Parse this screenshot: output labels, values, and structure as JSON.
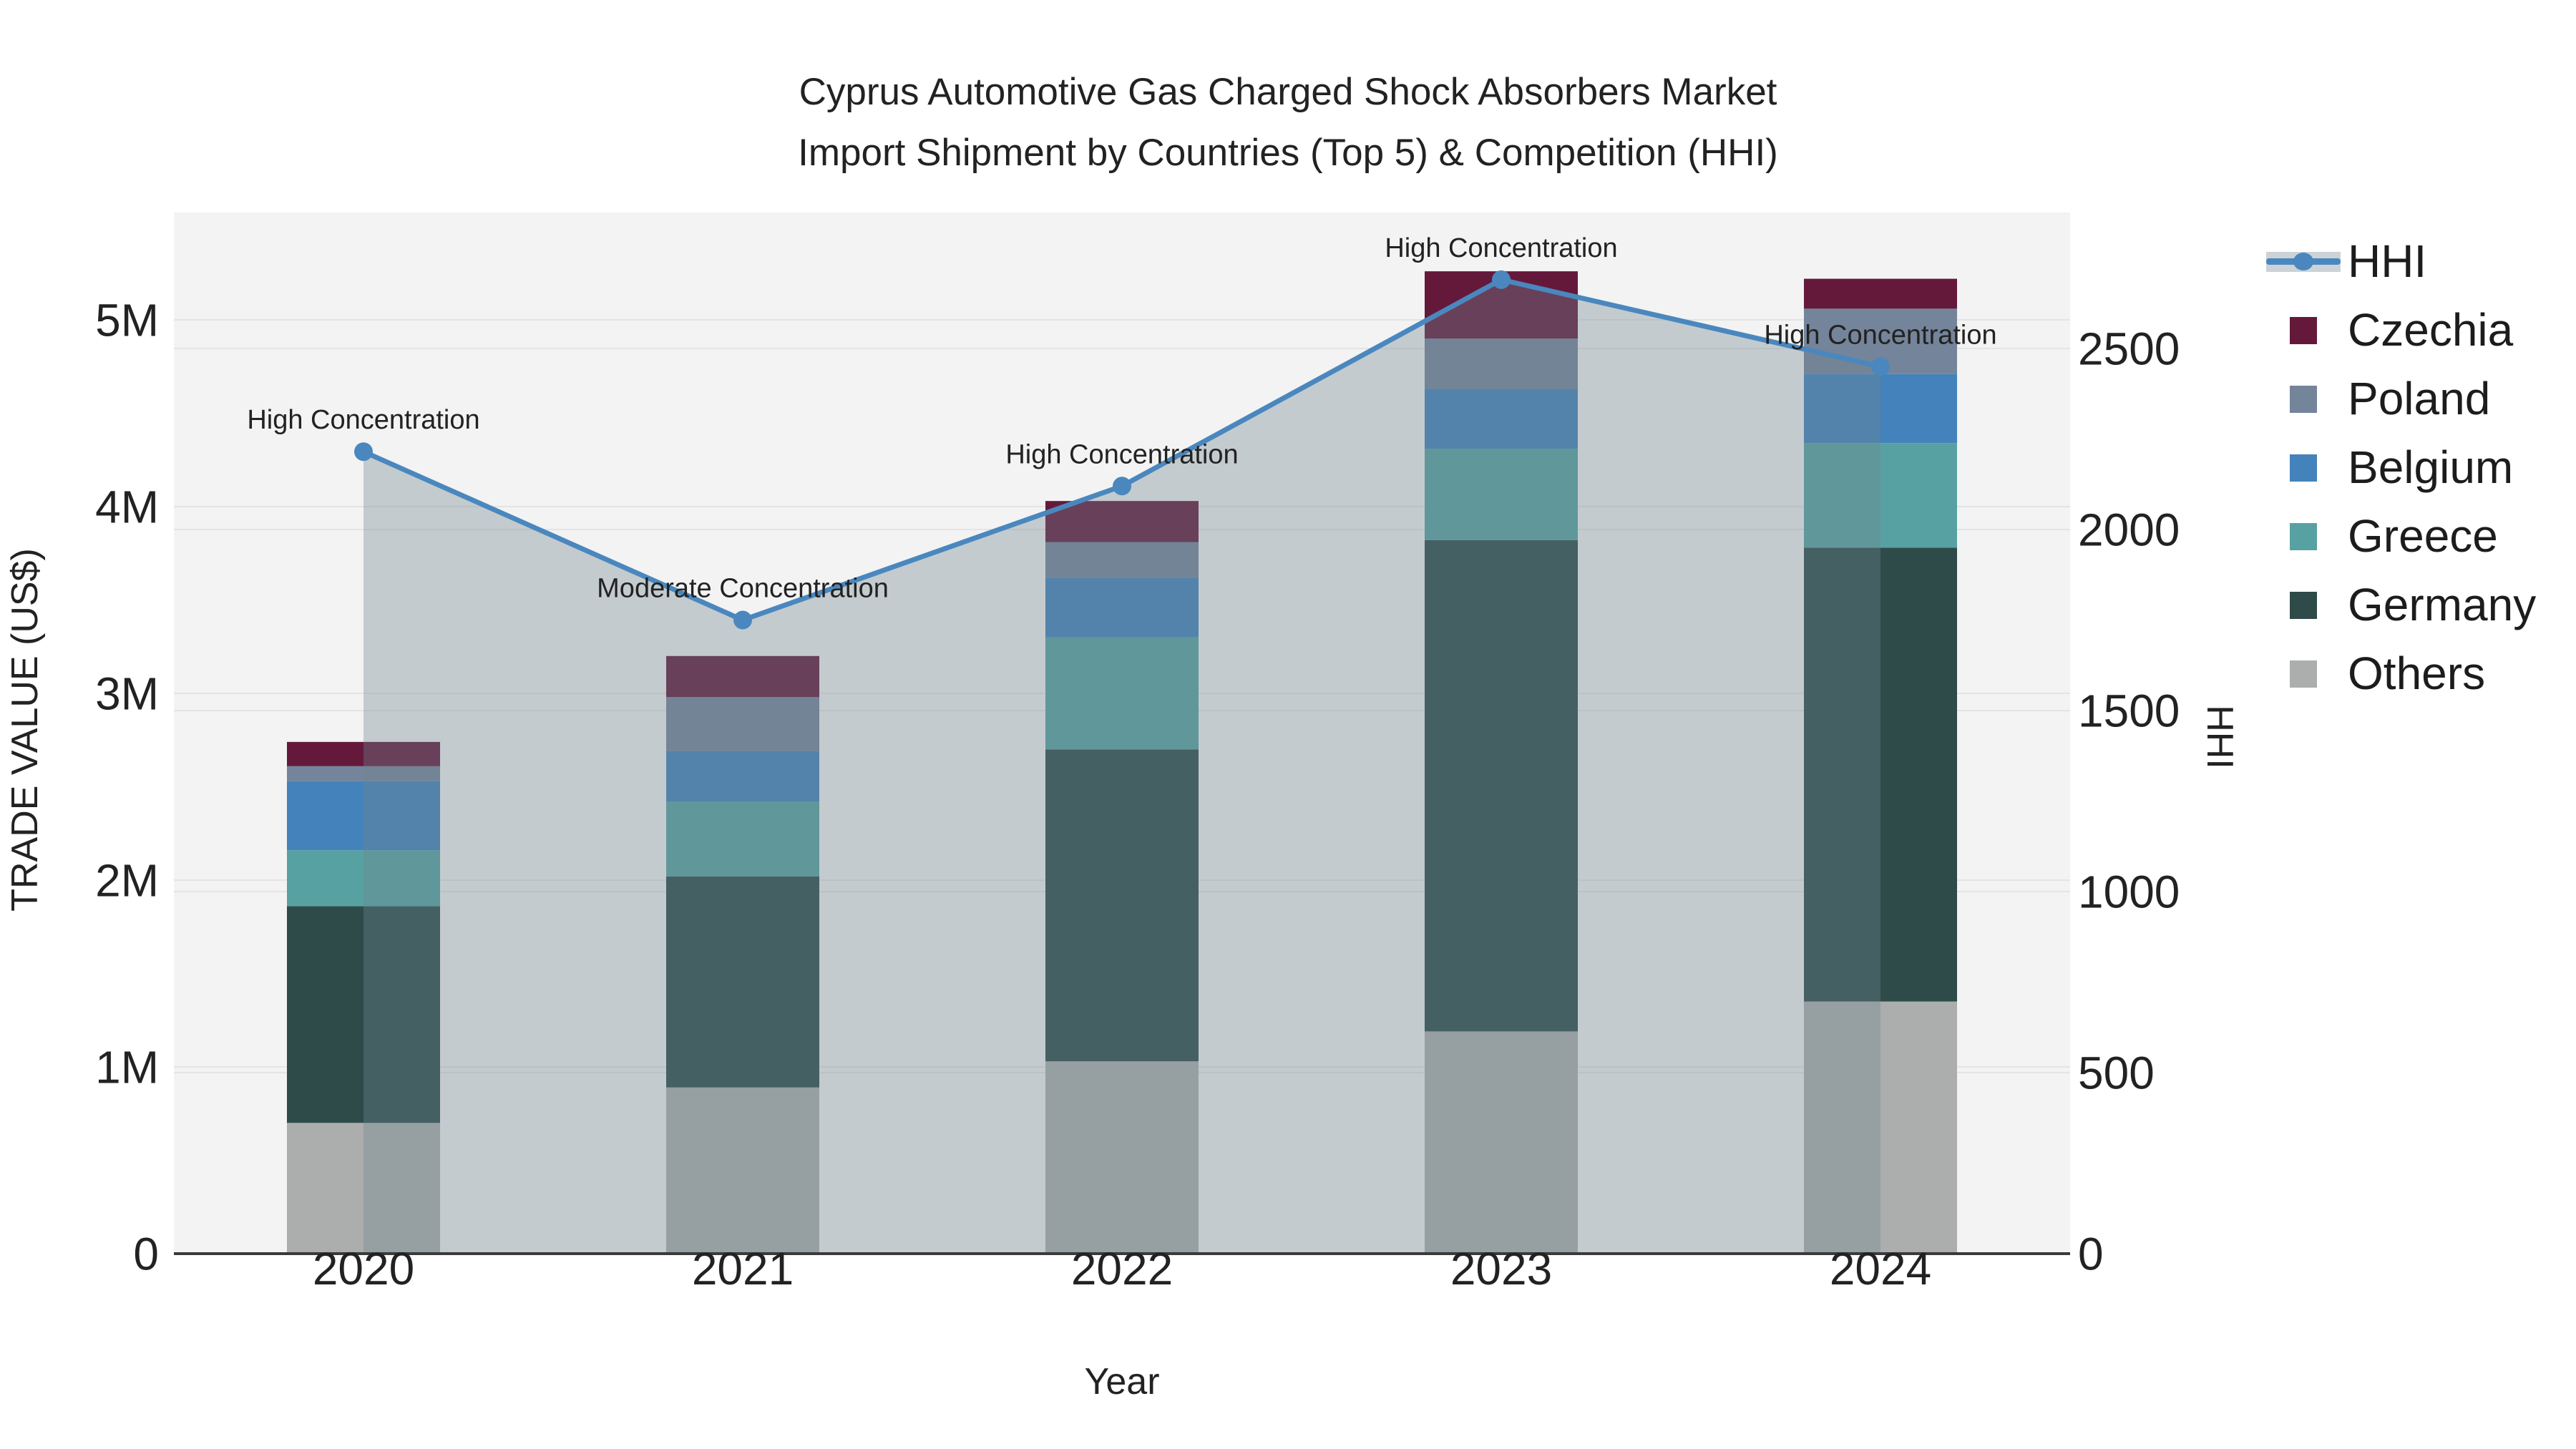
{
  "title": {
    "line1": "Cyprus Automotive Gas Charged Shock Absorbers Market",
    "line2": "Import Shipment by Countries (Top 5) & Competition (HHI)"
  },
  "chart_data": {
    "type": "bar",
    "subtype": "stacked-bars-with-line-overlay-and-area-fill",
    "title": "Cyprus Automotive Gas Charged Shock Absorbers Market Import Shipment by Countries (Top 5) & Competition (HHI)",
    "categories": [
      "2020",
      "2021",
      "2022",
      "2023",
      "2024"
    ],
    "unit": "US$",
    "stack_order_bottom_to_top": [
      "Others",
      "Germany",
      "Greece",
      "Belgium",
      "Poland",
      "Czechia"
    ],
    "series": [
      {
        "name": "Others",
        "values": [
          700000,
          890000,
          1030000,
          1190000,
          1350000
        ]
      },
      {
        "name": "Germany",
        "values": [
          1160000,
          1130000,
          1670000,
          2630000,
          2430000
        ]
      },
      {
        "name": "Greece",
        "values": [
          300000,
          400000,
          600000,
          490000,
          560000
        ]
      },
      {
        "name": "Belgium",
        "values": [
          370000,
          270000,
          320000,
          320000,
          370000
        ]
      },
      {
        "name": "Poland",
        "values": [
          80000,
          290000,
          190000,
          270000,
          350000
        ]
      },
      {
        "name": "Czechia",
        "values": [
          130000,
          220000,
          220000,
          360000,
          160000
        ]
      }
    ],
    "totals": [
      2740000,
      3200000,
      4030000,
      5260000,
      5220000
    ],
    "line_series": {
      "name": "HHI",
      "axis": "right",
      "fill": "tozero",
      "values": [
        2215,
        1750,
        2120,
        2690,
        2450
      ]
    },
    "annotations": [
      {
        "x": "2020",
        "text": "High Concentration"
      },
      {
        "x": "2021",
        "text": "Moderate Concentration"
      },
      {
        "x": "2022",
        "text": "High Concentration"
      },
      {
        "x": "2023",
        "text": "High Concentration"
      },
      {
        "x": "2024",
        "text": "High Concentration"
      }
    ],
    "xlabel": "Year",
    "ylabel_left": "TRADE VALUE (US$)",
    "ylabel_right": "HHI",
    "ylim_left": [
      0,
      5600000
    ],
    "ylim_right": [
      0,
      2855
    ],
    "yticks_left_labels": [
      "0",
      "1M",
      "2M",
      "3M",
      "4M",
      "5M"
    ],
    "yticks_left_values": [
      0,
      1000000,
      2000000,
      3000000,
      4000000,
      5000000
    ],
    "yticks_right_labels": [
      "0",
      "500",
      "1000",
      "1500",
      "2000",
      "2500"
    ],
    "yticks_right_values": [
      0,
      500,
      1000,
      1500,
      2000,
      2500
    ],
    "grid": true,
    "legend_position": "right",
    "legend_order": [
      "HHI",
      "Czechia",
      "Poland",
      "Belgium",
      "Greece",
      "Germany",
      "Others"
    ]
  },
  "colors": {
    "HHI": "#4A87BE",
    "hhi_area_fill": "rgba(112,134,144,0.36)",
    "Czechia": "#64193B",
    "Poland": "#74849A",
    "Belgium": "#4482BB",
    "Greece": "#58A1A2",
    "Germany": "#2E4B49",
    "Others": "#ACAEAD",
    "plot_background": "#F3F3F3",
    "gridline": "#E4E4E4",
    "axis_line": "#3A3A3A",
    "text": "#222222"
  }
}
